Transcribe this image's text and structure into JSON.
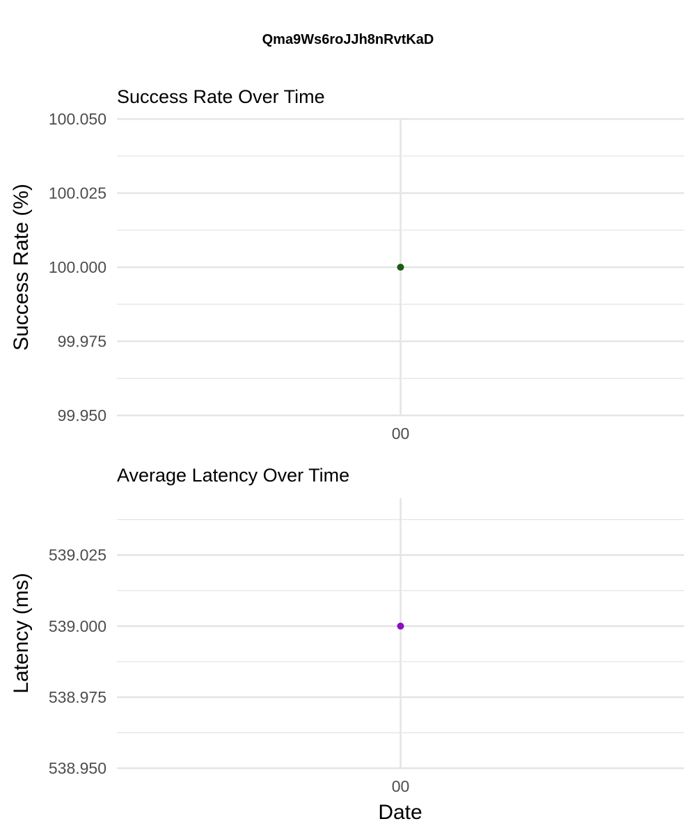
{
  "figure": {
    "title": "Qma9Ws6roJJh8nRvtKaD"
  },
  "colors": {
    "gridline": "#e5e5e5",
    "tick_text": "#4d4d4d",
    "text": "#000000"
  },
  "chart_data": [
    {
      "type": "scatter",
      "title": "Success Rate Over Time",
      "xlabel": "",
      "ylabel": "Success Rate (%)",
      "x_ticks": [
        "00"
      ],
      "x_values": [
        "00"
      ],
      "ylim": [
        99.95,
        100.05
      ],
      "y_ticks": [
        "99.950",
        "99.975",
        "100.000",
        "100.025",
        "100.050"
      ],
      "y_tick_values": [
        99.95,
        99.975,
        100.0,
        100.025,
        100.05
      ],
      "y_values": [
        100.0
      ],
      "point_color": "#1a5c14",
      "grid": true
    },
    {
      "type": "scatter",
      "title": "Average Latency Over Time",
      "xlabel": "Date",
      "ylabel": "Latency (ms)",
      "x_ticks": [
        "00"
      ],
      "x_values": [
        "00"
      ],
      "ylim": [
        538.95,
        539.045
      ],
      "y_ticks": [
        "538.950",
        "538.975",
        "539.000",
        "539.025"
      ],
      "y_tick_values": [
        538.95,
        538.975,
        539.0,
        539.025
      ],
      "y_values": [
        539.0
      ],
      "point_color": "#8a0fc7",
      "grid": true
    }
  ]
}
